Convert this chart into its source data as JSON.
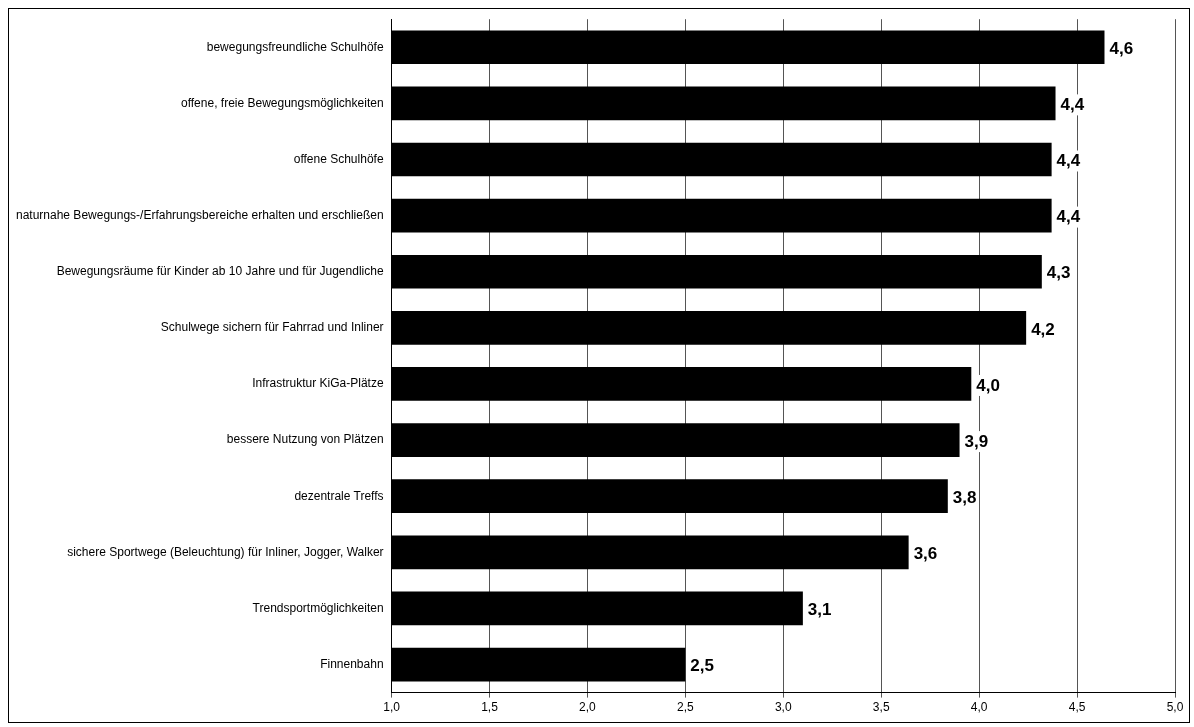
{
  "chart_data": {
    "type": "bar",
    "orientation": "horizontal",
    "categories": [
      "bewegungsfreundliche Schulhöfe",
      "offene, freie Bewegungsmöglichkeiten",
      "offene Schulhöfe",
      "naturnahe Bewegungs-/Erfahrungsbereiche erhalten und erschließen",
      "Bewegungsräume für Kinder ab 10 Jahre und für Jugendliche",
      "Schulwege sichern für Fahrrad und Inliner",
      "Infrastruktur KiGa-Plätze",
      "bessere Nutzung von Plätzen",
      "dezentrale Treffs",
      "sichere Sportwege (Beleuchtung) für Inliner, Jogger, Walker",
      "Trendsportmöglichkeiten",
      "Finnenbahn"
    ],
    "values": [
      4.64,
      4.39,
      4.37,
      4.37,
      4.32,
      4.24,
      3.96,
      3.9,
      3.84,
      3.64,
      3.1,
      2.5
    ],
    "value_labels": [
      "4,6",
      "4,4",
      "4,4",
      "4,4",
      "4,3",
      "4,2",
      "4,0",
      "3,9",
      "3,8",
      "3,6",
      "3,1",
      "2,5"
    ],
    "color": "#000000",
    "xlim": [
      1,
      5
    ],
    "xticks": [
      {
        "value": 1,
        "label": "1,0"
      },
      {
        "value": 1.5,
        "label": "1,5"
      },
      {
        "value": 2,
        "label": "2,0"
      },
      {
        "value": 2.5,
        "label": "2,5"
      },
      {
        "value": 3,
        "label": "3,0"
      },
      {
        "value": 3.5,
        "label": "3,5"
      },
      {
        "value": 4,
        "label": "4,0"
      },
      {
        "value": 4.5,
        "label": "4,5"
      },
      {
        "value": 5,
        "label": "5,0"
      }
    ],
    "grid": "x",
    "legend": false
  }
}
